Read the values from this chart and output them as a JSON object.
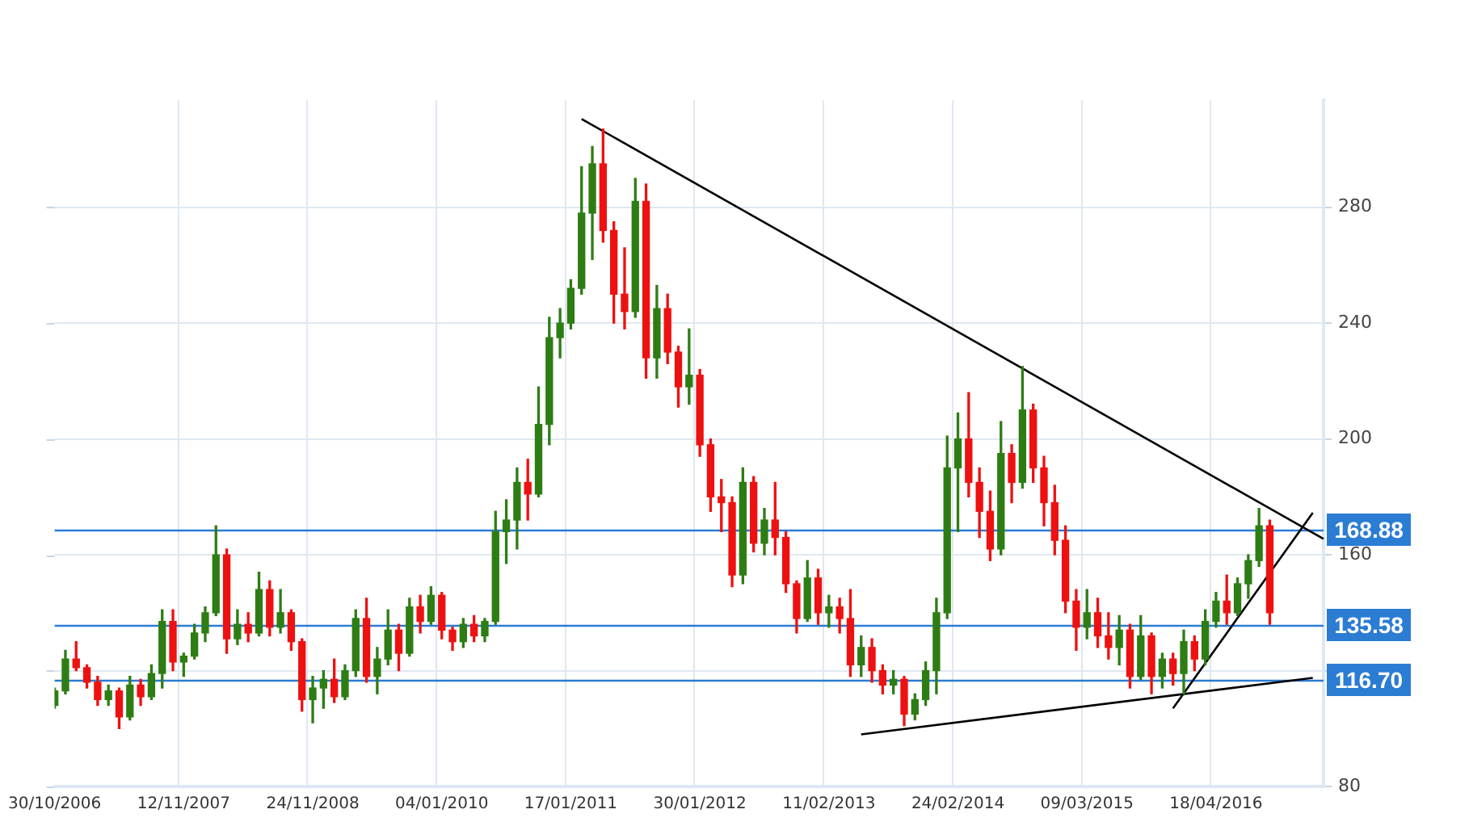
{
  "chart_data": {
    "type": "candlestick",
    "categories": [
      "30/10/2006",
      null,
      null,
      null,
      null,
      null,
      null,
      null,
      null,
      null,
      null,
      null,
      "12/11/2007",
      null,
      null,
      null,
      null,
      null,
      null,
      null,
      null,
      null,
      null,
      null,
      "24/11/2008",
      null,
      null,
      null,
      null,
      null,
      null,
      null,
      null,
      null,
      null,
      null,
      "04/01/2010",
      null,
      null,
      null,
      null,
      null,
      null,
      null,
      null,
      null,
      null,
      null,
      "17/01/2011",
      null,
      null,
      null,
      null,
      null,
      null,
      null,
      null,
      null,
      null,
      null,
      "30/01/2012",
      null,
      null,
      null,
      null,
      null,
      null,
      null,
      null,
      null,
      null,
      null,
      "11/02/2013",
      null,
      null,
      null,
      null,
      null,
      null,
      null,
      null,
      null,
      null,
      null,
      "24/02/2014",
      null,
      null,
      null,
      null,
      null,
      null,
      null,
      null,
      null,
      null,
      null,
      "09/03/2015",
      null,
      null,
      null,
      null,
      null,
      null,
      null,
      null,
      null,
      null,
      null,
      "18/04/2016",
      null,
      null,
      null,
      null,
      null,
      null,
      null,
      null,
      null,
      null
    ],
    "ohlc": [
      [
        108,
        114,
        107,
        113
      ],
      [
        113,
        127,
        112,
        124
      ],
      [
        124,
        130,
        120,
        121
      ],
      [
        121,
        122,
        114,
        116
      ],
      [
        116,
        118,
        108,
        110
      ],
      [
        110,
        115,
        108,
        113
      ],
      [
        113,
        114,
        100,
        104
      ],
      [
        104,
        118,
        103,
        115
      ],
      [
        115,
        117,
        108,
        111
      ],
      [
        111,
        122,
        110,
        119
      ],
      [
        119,
        141,
        114,
        137
      ],
      [
        137,
        141,
        120,
        123
      ],
      [
        123,
        126,
        118,
        125
      ],
      [
        125,
        136,
        124,
        133
      ],
      [
        133,
        142,
        130,
        140
      ],
      [
        140,
        170,
        139,
        160
      ],
      [
        160,
        162,
        126,
        131
      ],
      [
        131,
        141,
        129,
        136
      ],
      [
        136,
        140,
        130,
        133
      ],
      [
        133,
        154,
        132,
        148
      ],
      [
        148,
        151,
        132,
        135
      ],
      [
        135,
        148,
        133,
        140
      ],
      [
        140,
        141,
        127,
        130
      ],
      [
        130,
        131,
        106,
        110
      ],
      [
        110,
        118,
        102,
        114
      ],
      [
        114,
        120,
        107,
        117
      ],
      [
        117,
        124,
        109,
        111
      ],
      [
        111,
        122,
        110,
        120
      ],
      [
        120,
        141,
        118,
        138
      ],
      [
        138,
        145,
        116,
        118
      ],
      [
        118,
        128,
        112,
        124
      ],
      [
        124,
        141,
        122,
        134
      ],
      [
        134,
        136,
        120,
        126
      ],
      [
        126,
        145,
        125,
        142
      ],
      [
        142,
        146,
        133,
        137
      ],
      [
        137,
        149,
        136,
        146
      ],
      [
        146,
        147,
        131,
        134
      ],
      [
        134,
        135,
        127,
        130
      ],
      [
        130,
        138,
        128,
        136
      ],
      [
        136,
        139,
        130,
        132
      ],
      [
        132,
        138,
        130,
        137
      ],
      [
        137,
        175,
        136,
        168
      ],
      [
        168,
        179,
        157,
        172
      ],
      [
        172,
        190,
        162,
        185
      ],
      [
        185,
        193,
        172,
        181
      ],
      [
        181,
        218,
        180,
        205
      ],
      [
        205,
        242,
        198,
        235
      ],
      [
        235,
        245,
        228,
        240
      ],
      [
        240,
        255,
        238,
        252
      ],
      [
        252,
        294,
        250,
        278
      ],
      [
        278,
        301,
        262,
        295
      ],
      [
        295,
        307,
        268,
        272
      ],
      [
        272,
        275,
        240,
        250
      ],
      [
        250,
        266,
        238,
        244
      ],
      [
        244,
        290,
        242,
        282
      ],
      [
        282,
        288,
        221,
        228
      ],
      [
        228,
        253,
        221,
        245
      ],
      [
        245,
        250,
        226,
        230
      ],
      [
        230,
        232,
        211,
        218
      ],
      [
        218,
        238,
        212,
        222
      ],
      [
        222,
        224,
        194,
        198
      ],
      [
        198,
        200,
        175,
        180
      ],
      [
        180,
        186,
        168,
        178
      ],
      [
        178,
        180,
        149,
        153
      ],
      [
        153,
        190,
        150,
        185
      ],
      [
        185,
        187,
        161,
        164
      ],
      [
        164,
        176,
        160,
        172
      ],
      [
        172,
        185,
        160,
        166
      ],
      [
        166,
        168,
        147,
        150
      ],
      [
        150,
        151,
        133,
        138
      ],
      [
        138,
        158,
        137,
        152
      ],
      [
        152,
        155,
        136,
        140
      ],
      [
        140,
        146,
        135,
        142
      ],
      [
        142,
        145,
        133,
        138
      ],
      [
        138,
        148,
        118,
        122
      ],
      [
        122,
        132,
        118,
        128
      ],
      [
        128,
        131,
        116,
        120
      ],
      [
        120,
        122,
        112,
        115
      ],
      [
        115,
        120,
        112,
        117
      ],
      [
        117,
        118,
        101,
        105
      ],
      [
        105,
        112,
        103,
        110
      ],
      [
        110,
        123,
        108,
        120
      ],
      [
        120,
        145,
        112,
        140
      ],
      [
        140,
        201,
        138,
        190
      ],
      [
        190,
        209,
        168,
        200
      ],
      [
        200,
        216,
        180,
        185
      ],
      [
        185,
        190,
        166,
        175
      ],
      [
        175,
        182,
        158,
        162
      ],
      [
        162,
        206,
        160,
        195
      ],
      [
        195,
        198,
        178,
        185
      ],
      [
        185,
        225,
        183,
        210
      ],
      [
        210,
        212,
        185,
        190
      ],
      [
        190,
        194,
        170,
        178
      ],
      [
        178,
        184,
        160,
        165
      ],
      [
        165,
        170,
        140,
        144
      ],
      [
        144,
        148,
        127,
        135
      ],
      [
        135,
        148,
        131,
        140
      ],
      [
        140,
        145,
        128,
        132
      ],
      [
        132,
        140,
        124,
        128
      ],
      [
        128,
        139,
        122,
        134
      ],
      [
        134,
        136,
        114,
        118
      ],
      [
        118,
        139,
        117,
        132
      ],
      [
        132,
        133,
        112,
        118
      ],
      [
        118,
        126,
        114,
        124
      ],
      [
        124,
        126,
        115,
        119
      ],
      [
        119,
        134,
        112,
        130
      ],
      [
        130,
        132,
        120,
        124
      ],
      [
        124,
        141,
        122,
        137
      ],
      [
        137,
        147,
        135,
        144
      ],
      [
        144,
        153,
        136,
        140
      ],
      [
        140,
        152,
        139,
        150
      ],
      [
        150,
        160,
        145,
        158
      ],
      [
        158,
        176,
        156,
        170
      ],
      [
        170,
        172,
        136,
        140
      ],
      null,
      null,
      null,
      null,
      null
    ],
    "colors": [
      "#2e7d14",
      "#2e7d14",
      "#ee1111",
      "#ee1111",
      "#ee1111",
      "#2e7d14",
      "#ee1111",
      "#2e7d14",
      "#ee1111",
      "#2e7d14",
      "#2e7d14",
      "#ee1111",
      "#2e7d14",
      "#2e7d14",
      "#2e7d14",
      "#2e7d14",
      "#ee1111",
      "#2e7d14",
      "#ee1111",
      "#2e7d14",
      "#ee1111",
      "#2e7d14",
      "#ee1111",
      "#ee1111",
      "#2e7d14",
      "#2e7d14",
      "#ee1111",
      "#2e7d14",
      "#2e7d14",
      "#ee1111",
      "#2e7d14",
      "#2e7d14",
      "#ee1111",
      "#2e7d14",
      "#ee1111",
      "#2e7d14",
      "#ee1111",
      "#ee1111",
      "#2e7d14",
      "#ee1111",
      "#2e7d14",
      "#2e7d14",
      "#2e7d14",
      "#2e7d14",
      "#ee1111",
      "#2e7d14",
      "#2e7d14",
      "#2e7d14",
      "#2e7d14",
      "#2e7d14",
      "#2e7d14",
      "#ee1111",
      "#ee1111",
      "#ee1111",
      "#2e7d14",
      "#ee1111",
      "#2e7d14",
      "#ee1111",
      "#ee1111",
      "#2e7d14",
      "#ee1111",
      "#ee1111",
      "#ee1111",
      "#ee1111",
      "#2e7d14",
      "#ee1111",
      "#2e7d14",
      "#ee1111",
      "#ee1111",
      "#ee1111",
      "#2e7d14",
      "#ee1111",
      "#2e7d14",
      "#ee1111",
      "#ee1111",
      "#2e7d14",
      "#ee1111",
      "#ee1111",
      "#2e7d14",
      "#ee1111",
      "#2e7d14",
      "#2e7d14",
      "#2e7d14",
      "#2e7d14",
      "#2e7d14",
      "#ee1111",
      "#ee1111",
      "#ee1111",
      "#2e7d14",
      "#ee1111",
      "#2e7d14",
      "#ee1111",
      "#ee1111",
      "#ee1111",
      "#ee1111",
      "#ee1111",
      "#2e7d14",
      "#ee1111",
      "#ee1111",
      "#2e7d14",
      "#ee1111",
      "#2e7d14",
      "#ee1111",
      "#2e7d14",
      "#ee1111",
      "#2e7d14",
      "#ee1111",
      "#2e7d14",
      "#2e7d14",
      "#ee1111",
      "#2e7d14",
      "#2e7d14",
      "#2e7d14",
      "#ee1111",
      null,
      null,
      null,
      null,
      null
    ],
    "series": [
      {
        "type": "line",
        "color": "#000000",
        "values": [
          null,
          null,
          null,
          null,
          null,
          null,
          null,
          null,
          null,
          null,
          null,
          null,
          null,
          null,
          null,
          null,
          null,
          null,
          null,
          null,
          null,
          null,
          null,
          null,
          null,
          null,
          null,
          null,
          null,
          null,
          null,
          null,
          null,
          null,
          null,
          null,
          null,
          null,
          null,
          null,
          null,
          null,
          null,
          null,
          null,
          null,
          null,
          null,
          null,
          310.5,
          null,
          null,
          null,
          null,
          null,
          null,
          null,
          null,
          null,
          null,
          null,
          null,
          null,
          null,
          null,
          null,
          null,
          null,
          null,
          null,
          null,
          null,
          null,
          null,
          null,
          null,
          null,
          null,
          null,
          null,
          null,
          null,
          null,
          null,
          null,
          null,
          null,
          null,
          null,
          null,
          null,
          null,
          null,
          null,
          null,
          null,
          null,
          null,
          null,
          null,
          null,
          null,
          null,
          null,
          null,
          null,
          null,
          null,
          null,
          null,
          null,
          null,
          null,
          null,
          null,
          null,
          null,
          null,
          165.5
        ]
      },
      {
        "type": "line",
        "color": "#000000",
        "values": [
          null,
          null,
          null,
          null,
          null,
          null,
          null,
          null,
          null,
          null,
          null,
          null,
          null,
          null,
          null,
          null,
          null,
          null,
          null,
          null,
          null,
          null,
          null,
          null,
          null,
          null,
          null,
          null,
          null,
          null,
          null,
          null,
          null,
          null,
          null,
          null,
          null,
          null,
          null,
          null,
          null,
          null,
          null,
          null,
          null,
          null,
          null,
          null,
          null,
          null,
          null,
          null,
          null,
          null,
          null,
          null,
          null,
          null,
          null,
          null,
          null,
          null,
          null,
          null,
          null,
          null,
          null,
          null,
          null,
          null,
          null,
          null,
          null,
          null,
          null,
          98,
          null,
          null,
          null,
          null,
          null,
          null,
          null,
          null,
          null,
          null,
          null,
          null,
          null,
          null,
          null,
          null,
          null,
          null,
          null,
          null,
          null,
          null,
          null,
          null,
          null,
          null,
          null,
          null,
          null,
          null,
          null,
          null,
          null,
          null,
          null,
          null,
          null,
          null,
          null,
          null,
          null,
          117.5,
          null
        ]
      },
      {
        "type": "line",
        "color": "#000000",
        "values": [
          null,
          null,
          null,
          null,
          null,
          null,
          null,
          null,
          null,
          null,
          null,
          null,
          null,
          null,
          null,
          null,
          null,
          null,
          null,
          null,
          null,
          null,
          null,
          null,
          null,
          null,
          null,
          null,
          null,
          null,
          null,
          null,
          null,
          null,
          null,
          null,
          null,
          null,
          null,
          null,
          null,
          null,
          null,
          null,
          null,
          null,
          null,
          null,
          null,
          null,
          null,
          null,
          null,
          null,
          null,
          null,
          null,
          null,
          null,
          null,
          null,
          null,
          null,
          null,
          null,
          null,
          null,
          null,
          null,
          null,
          null,
          null,
          null,
          null,
          null,
          null,
          null,
          null,
          null,
          null,
          null,
          null,
          null,
          null,
          null,
          null,
          null,
          null,
          null,
          null,
          null,
          null,
          null,
          null,
          null,
          null,
          null,
          null,
          null,
          null,
          null,
          null,
          null,
          null,
          107,
          null,
          null,
          null,
          null,
          null,
          null,
          null,
          null,
          null,
          null,
          null,
          null,
          174.5,
          null
        ]
      }
    ],
    "ref_lines": [
      {
        "axis": "y",
        "value": 168.88,
        "label": "168.88",
        "color": "#2b7cd3"
      },
      {
        "axis": "y",
        "value": 135.58,
        "label": "135.58",
        "color": "#2b7cd3"
      },
      {
        "axis": "y",
        "value": 116.7,
        "label": "116.70",
        "color": "#2b7cd3"
      }
    ],
    "ylim": [
      80,
      317
    ],
    "yticks": [
      80,
      {
        "value": 120,
        "label": null
      },
      160,
      200,
      240,
      280
    ],
    "grid": true
  }
}
